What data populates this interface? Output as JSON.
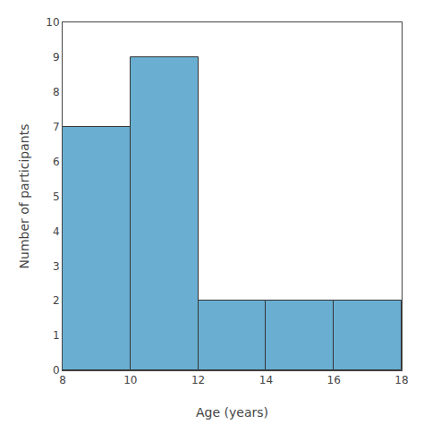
{
  "chart_data": {
    "type": "histogram",
    "bins": [
      8,
      10,
      12,
      14,
      16,
      18
    ],
    "values": [
      7,
      9,
      2,
      2,
      2
    ],
    "color": "#6aafd2",
    "xlabel": "Age (years)",
    "ylabel": "Number of participants",
    "xlim": [
      8,
      18
    ],
    "ylim": [
      0,
      10
    ],
    "xticks": [
      8,
      10,
      12,
      14,
      16,
      18
    ],
    "yticks": [
      0,
      1,
      2,
      3,
      4,
      5,
      6,
      7,
      8,
      9,
      10
    ],
    "grid": false
  }
}
